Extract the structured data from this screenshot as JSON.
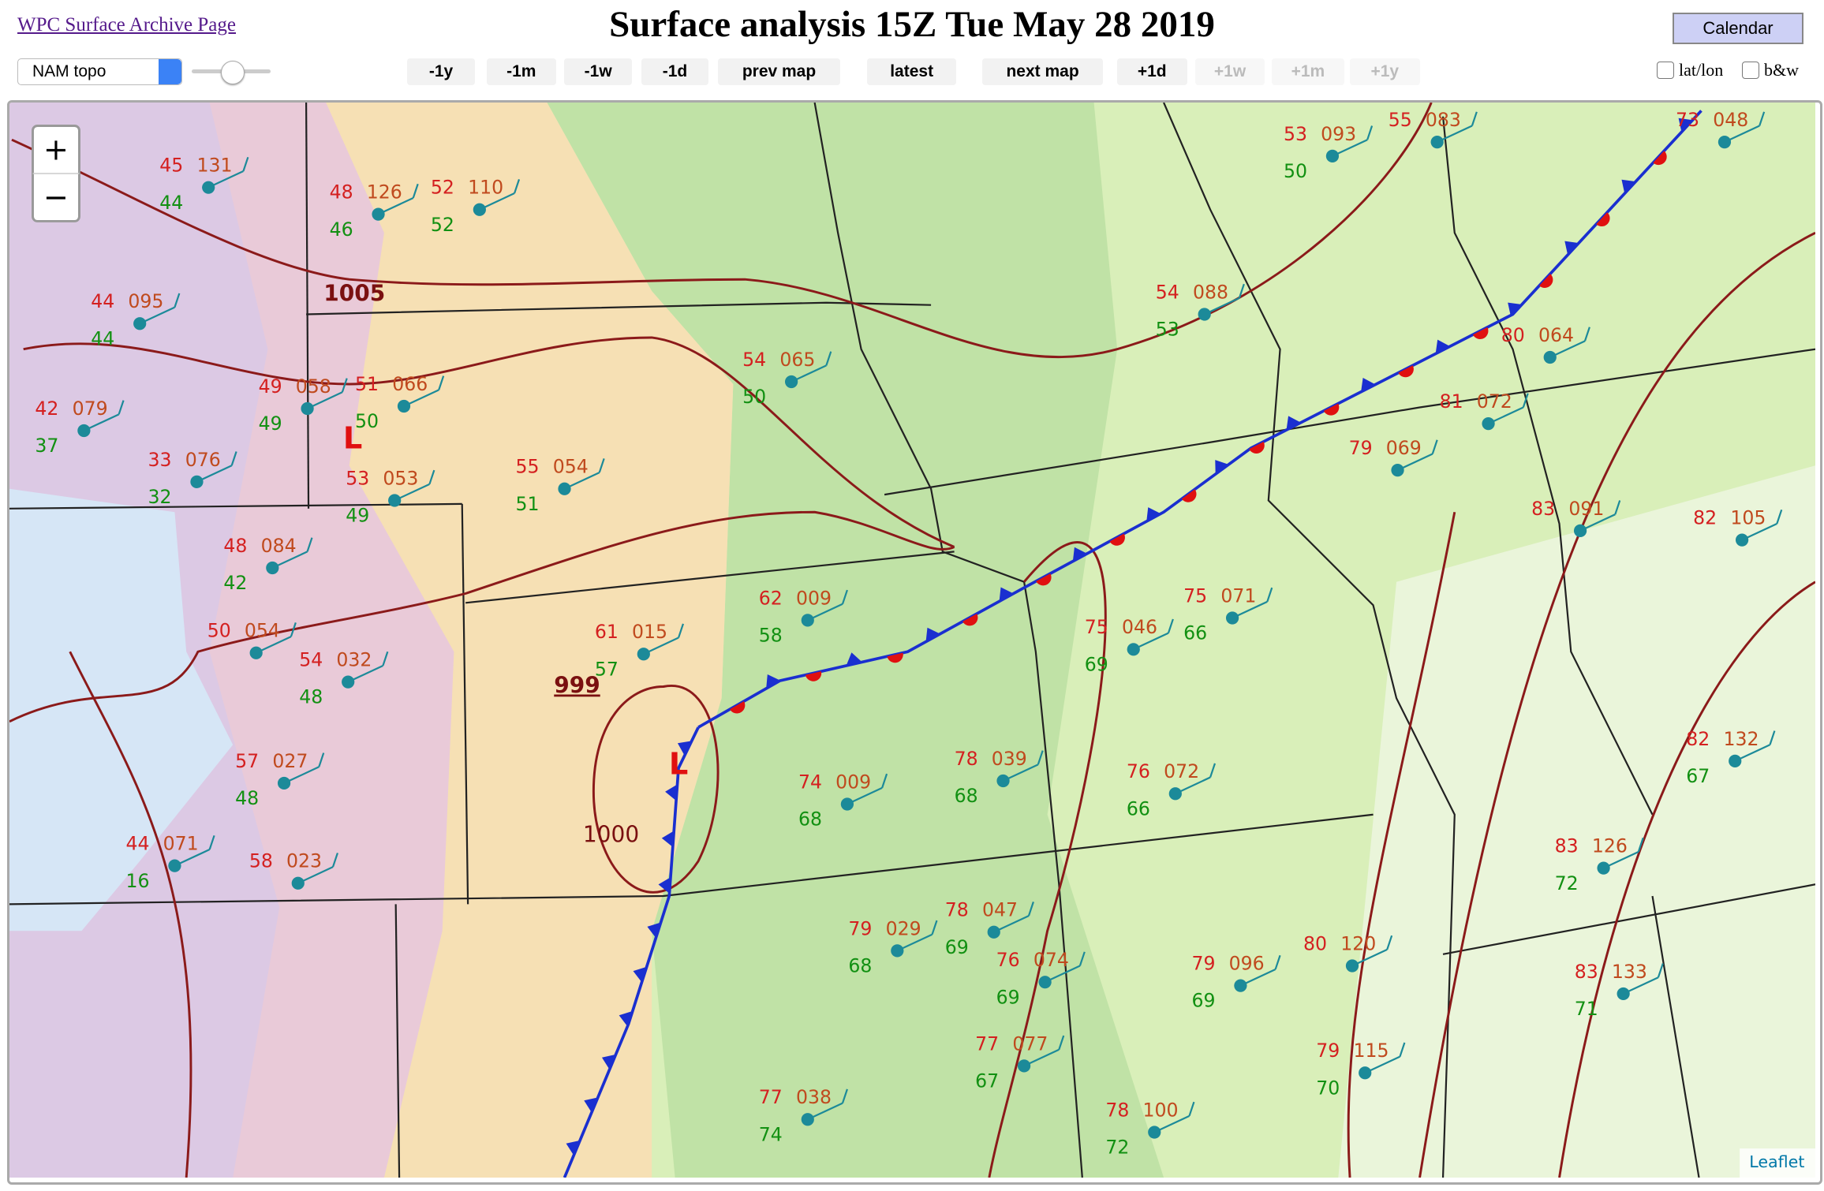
{
  "header": {
    "archive_link": "WPC Surface Archive Page",
    "title": "Surface analysis 15Z Tue May 28 2019",
    "calendar_button": "Calendar"
  },
  "controls": {
    "map_type": "NAM topo",
    "nav_buttons": [
      "-1y",
      "-1m",
      "-1w",
      "-1d",
      "prev map",
      "latest",
      "next map",
      "+1d",
      "+1w",
      "+1m",
      "+1y"
    ],
    "checkboxes": [
      "lat/lon",
      "b&w"
    ]
  },
  "map": {
    "zoom_in": "+",
    "zoom_out": "−",
    "attribution": "Leaflet",
    "pressure_labels": [
      "1005",
      "999",
      "1000"
    ],
    "low_markers": [
      "L",
      "L"
    ],
    "stations": [
      {
        "temperature": 45,
        "pressure": "131",
        "dewpoint": 44
      },
      {
        "temperature": 48,
        "pressure": "126",
        "dewpoint": 46
      },
      {
        "temperature": 52,
        "pressure": "110",
        "dewpoint": 52
      },
      {
        "temperature": 44,
        "pressure": "095",
        "dewpoint": 44
      },
      {
        "temperature": 49,
        "pressure": "058",
        "dewpoint": 49
      },
      {
        "temperature": 51,
        "pressure": "066",
        "dewpoint": 50
      },
      {
        "temperature": 42,
        "pressure": "079",
        "dewpoint": 37
      },
      {
        "temperature": 33,
        "pressure": "076",
        "dewpoint": 32
      },
      {
        "temperature": 53,
        "pressure": "053",
        "dewpoint": 49
      },
      {
        "temperature": 48,
        "pressure": "084",
        "dewpoint": 42
      },
      {
        "temperature": 50,
        "pressure": "054"
      },
      {
        "temperature": 54,
        "pressure": "032",
        "dewpoint": 48
      },
      {
        "temperature": 57,
        "pressure": "027",
        "dewpoint": 48
      },
      {
        "temperature": 58,
        "pressure": "023"
      },
      {
        "temperature": 44,
        "pressure": "071",
        "dewpoint": 16
      },
      {
        "temperature": 55,
        "pressure": "054",
        "dewpoint": 51
      },
      {
        "temperature": 54,
        "pressure": "065",
        "dewpoint": 50
      },
      {
        "temperature": 62,
        "pressure": "009",
        "dewpoint": 58
      },
      {
        "temperature": 61,
        "pressure": "015",
        "dewpoint": 57
      },
      {
        "temperature": 74,
        "pressure": "009",
        "dewpoint": 68
      },
      {
        "temperature": 78,
        "pressure": "039",
        "dewpoint": 68
      },
      {
        "temperature": 76,
        "pressure": "072",
        "dewpoint": 66
      },
      {
        "temperature": 75,
        "pressure": "071",
        "dewpoint": 66
      },
      {
        "temperature": 75,
        "pressure": "046",
        "dewpoint": 69
      },
      {
        "temperature": 80,
        "pressure": "064"
      },
      {
        "temperature": 83,
        "pressure": "091"
      },
      {
        "temperature": 82,
        "pressure": "105"
      },
      {
        "temperature": 82,
        "pressure": "132",
        "dewpoint": 67
      },
      {
        "temperature": 83,
        "pressure": "126",
        "dewpoint": 72
      },
      {
        "temperature": 83,
        "pressure": "133",
        "dewpoint": 71
      },
      {
        "temperature": 79,
        "pressure": "096",
        "dewpoint": 69
      },
      {
        "temperature": 79,
        "pressure": "115",
        "dewpoint": 70
      },
      {
        "temperature": 77,
        "pressure": "077",
        "dewpoint": 67
      },
      {
        "temperature": 77,
        "pressure": "038",
        "dewpoint": 74
      },
      {
        "temperature": 76,
        "pressure": "074",
        "dewpoint": 69
      },
      {
        "temperature": 78,
        "pressure": "047",
        "dewpoint": 69
      },
      {
        "temperature": 79,
        "pressure": "029",
        "dewpoint": 68
      },
      {
        "temperature": 80,
        "pressure": "120"
      },
      {
        "temperature": 78,
        "pressure": "100",
        "dewpoint": 72
      },
      {
        "temperature": 54,
        "pressure": "088",
        "dewpoint": 53
      },
      {
        "temperature": 53,
        "pressure": "093",
        "dewpoint": 50
      },
      {
        "temperature": 55,
        "pressure": "083"
      },
      {
        "temperature": 73,
        "pressure": "048"
      },
      {
        "temperature": 81,
        "pressure": "072"
      },
      {
        "temperature": 79,
        "pressure": "069"
      }
    ]
  }
}
